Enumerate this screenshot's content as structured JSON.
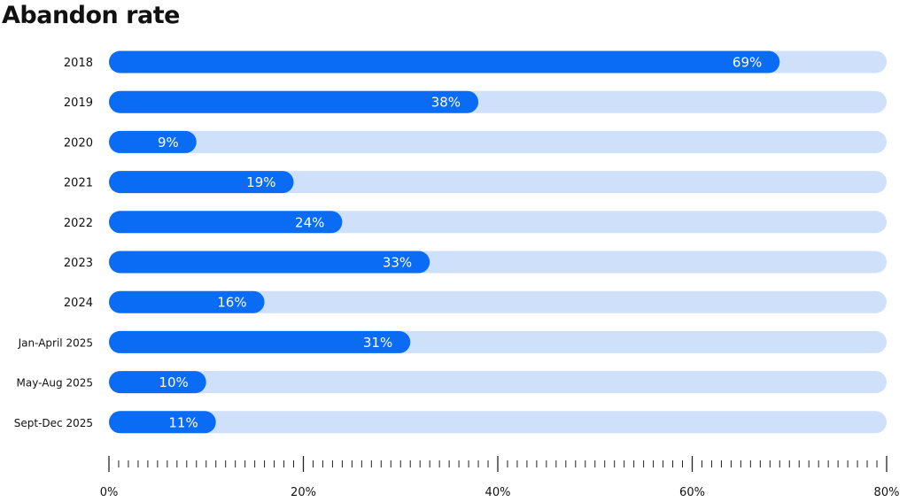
{
  "chart_data": {
    "type": "bar",
    "orientation": "horizontal",
    "title": "Abandon rate",
    "xlabel": "",
    "ylabel": "",
    "categories": [
      "2018",
      "2019",
      "2020",
      "2021",
      "2022",
      "2023",
      "2024",
      "Jan-April 2025",
      "May-Aug 2025",
      "Sept-Dec 2025"
    ],
    "values": [
      69,
      38,
      9,
      19,
      24,
      33,
      16,
      31,
      10,
      11
    ],
    "value_labels": [
      "69%",
      "38%",
      "9%",
      "19%",
      "24%",
      "33%",
      "16%",
      "31%",
      "10%",
      "11%"
    ],
    "xlim": [
      0,
      80
    ],
    "x_ticks": [
      0,
      20,
      40,
      60,
      80
    ],
    "x_tick_labels": [
      "0%",
      "20%",
      "40%",
      "60%",
      "80%"
    ],
    "minor_tick_step": 1,
    "grid": false,
    "colors": {
      "bar": "#0a6cf5",
      "track": "#cfe0fb",
      "axis": "#222222",
      "text": "#111111"
    }
  }
}
